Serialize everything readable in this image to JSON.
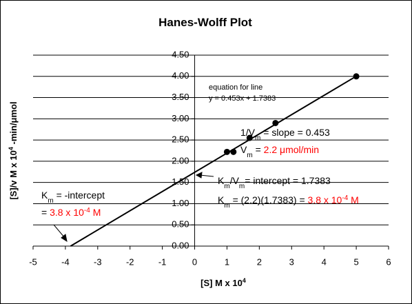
{
  "chart_data": {
    "type": "scatter",
    "title": "Hanes-Wolff Plot",
    "x_label": {
      "parts": [
        {
          "text": "[S] M x 10"
        },
        {
          "text": "4",
          "sup": true
        }
      ]
    },
    "y_label": {
      "parts": [
        {
          "text": "[S]/v  M x 10"
        },
        {
          "text": "4",
          "sup": true
        },
        {
          "text": " -min/"
        },
        {
          "text": "μ"
        },
        {
          "text": "mol"
        }
      ]
    },
    "series": [
      {
        "color": "#000000",
        "x": [
          1,
          1.2,
          1.7,
          2.5,
          5
        ],
        "values": [
          2.22,
          2.22,
          2.55,
          2.9,
          4.0
        ]
      }
    ],
    "trendline": {
      "color": "#000000",
      "x": [
        -3.84,
        5
      ],
      "values": [
        0,
        4.0033
      ]
    },
    "xlim": [
      -5,
      6
    ],
    "xticks": [
      -5,
      -4,
      -3,
      -2,
      -1,
      0,
      1,
      2,
      3,
      4,
      5,
      6
    ],
    "ylim": [
      0,
      4.5
    ],
    "yticks": [
      {
        "value": 0,
        "label": "0.00"
      },
      {
        "value": 0.5,
        "label": "0.50"
      },
      {
        "value": 1,
        "label": "1.00"
      },
      {
        "value": 1.5,
        "label": "1.50"
      },
      {
        "value": 2,
        "label": "2.00"
      },
      {
        "value": 2.5,
        "label": "2.50"
      },
      {
        "value": 3,
        "label": "3.00"
      },
      {
        "value": 3.5,
        "label": "3.50"
      },
      {
        "value": 4,
        "label": "4.00"
      },
      {
        "value": 4.5,
        "label": "4.50"
      }
    ],
    "grid": true,
    "annotations": [
      {
        "small": true,
        "parts": [
          {
            "text": "equation for line"
          }
        ]
      },
      {
        "small": true,
        "parts": [
          {
            "text": "y = 0.453x + 1.7383"
          }
        ]
      },
      {
        "parts": [
          {
            "text": "1/V"
          },
          {
            "text": "m",
            "sub": true
          },
          {
            "text": " = slope = 0.453"
          }
        ]
      },
      {
        "parts": [
          {
            "text": "V"
          },
          {
            "text": "m",
            "sub": true
          },
          {
            "text": " = "
          },
          {
            "text": "2.2 μmol/min",
            "color": "#ff0000"
          }
        ]
      },
      {
        "parts": [
          {
            "text": "K"
          },
          {
            "text": "m",
            "sub": true
          },
          {
            "text": "/V"
          },
          {
            "text": "m",
            "sub": true
          },
          {
            "text": "= intercept = 1.7383"
          }
        ]
      },
      {
        "parts": [
          {
            "text": "K"
          },
          {
            "text": "m",
            "sub": true
          },
          {
            "text": " = (2.2)(1.7383) = "
          },
          {
            "text": "3.8 x 10",
            "color": "#ff0000"
          },
          {
            "text": "-4",
            "sup": true,
            "color": "#ff0000"
          },
          {
            "text": " M",
            "color": "#ff0000"
          }
        ]
      },
      {
        "parts": [
          {
            "text": "K"
          },
          {
            "text": "m",
            "sub": true
          },
          {
            "text": " = -intercept"
          }
        ]
      },
      {
        "parts": [
          {
            "text": "= "
          },
          {
            "text": "3.8 x 10",
            "color": "#ff0000"
          },
          {
            "text": "-4",
            "sup": true,
            "color": "#ff0000"
          },
          {
            "text": " M",
            "color": "#ff0000"
          }
        ]
      }
    ]
  }
}
